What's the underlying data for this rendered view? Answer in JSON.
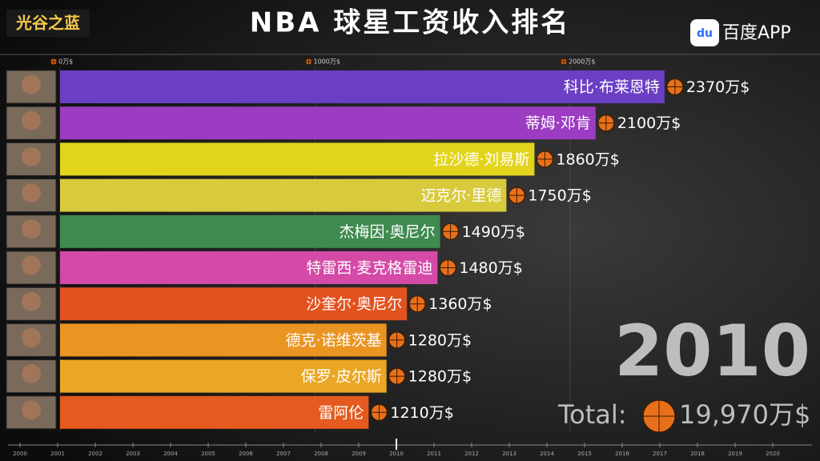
{
  "header": {
    "logo": "光谷之蓝",
    "app": "百度APP"
  },
  "chart_data": {
    "type": "bar",
    "orientation": "horizontal",
    "title": "NBA 球星工资收入排名",
    "categories": [
      "科比·布莱恩特",
      "蒂姆·邓肯",
      "拉沙德·刘易斯",
      "迈克尔·里德",
      "杰梅因·奥尼尔",
      "特雷西·麦克格雷迪",
      "沙奎尔·奥尼尔",
      "德克·诺维茨基",
      "保罗·皮尔斯",
      "雷阿伦"
    ],
    "values": [
      2370,
      2100,
      1860,
      1750,
      1490,
      1480,
      1360,
      1280,
      1280,
      1210
    ],
    "value_labels": [
      "2370万$",
      "2100万$",
      "1860万$",
      "1750万$",
      "1490万$",
      "1480万$",
      "1360万$",
      "1280万$",
      "1280万$",
      "1210万$"
    ],
    "colors": [
      "#6a3fc4",
      "#9b3cc2",
      "#e2d41c",
      "#d8ca3c",
      "#3f8b4f",
      "#d44aa6",
      "#e2521f",
      "#ea9422",
      "#eaa624",
      "#e45a1f"
    ],
    "xlim": [
      0,
      2380
    ],
    "xticks": [
      {
        "value": 0,
        "label": "0万$"
      },
      {
        "value": 1000,
        "label": "1000万$"
      },
      {
        "value": 2000,
        "label": "2000万$"
      }
    ],
    "total_label": "Total:",
    "total": {
      "value": 19970,
      "label": "19,970万$"
    },
    "timeline": {
      "ticks": [
        2000,
        2001,
        2002,
        2003,
        2004,
        2005,
        2006,
        2007,
        2008,
        2009,
        2010,
        2011,
        2012,
        2013,
        2014,
        2015,
        2016,
        2017,
        2018,
        2019,
        2020
      ],
      "current": 2010
    }
  }
}
